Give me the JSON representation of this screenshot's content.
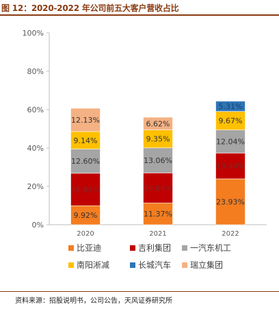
{
  "figure": {
    "title": "图 12：2020-2022 年公司前五大客户营收占比",
    "source": "资料来源：招股说明书，公司公告，天风证券研究所"
  },
  "chart_data": {
    "type": "bar",
    "stacked": true,
    "title": "",
    "xlabel": "",
    "ylabel": "",
    "ylim": [
      0,
      100
    ],
    "yticks": [
      "0%",
      "20%",
      "40%",
      "60%",
      "80%",
      "100%"
    ],
    "categories": [
      "2020",
      "2021",
      "2022"
    ],
    "legend_position": "bottom",
    "grid": false,
    "series": [
      {
        "name": "比亚迪",
        "color": "#F47D20",
        "values": [
          9.92,
          11.37,
          23.93
        ],
        "labels": [
          "9.92%",
          "11.37%",
          "23.93%"
        ],
        "label_color": "#333333"
      },
      {
        "name": "吉利集团",
        "color": "#C00000",
        "values": [
          16.92,
          15.64,
          13.44
        ],
        "labels": [
          "16.92%",
          "15.64%",
          "13.44%"
        ],
        "label_color": "#7a2a2a"
      },
      {
        "name": "一汽东机工",
        "color": "#A5A5A5",
        "values": [
          12.6,
          13.06,
          12.04
        ],
        "labels": [
          "12.60%",
          "13.06%",
          "12.04%"
        ],
        "label_color": "#333333"
      },
      {
        "name": "南阳淅减",
        "color": "#FFC000",
        "values": [
          9.14,
          9.35,
          9.67
        ],
        "labels": [
          "9.14%",
          "9.35%",
          "9.67%"
        ],
        "label_color": "#333333"
      },
      {
        "name": "长城汽车",
        "color": "#2E75B6",
        "values": [
          0,
          0,
          5.31
        ],
        "labels": [
          "",
          "",
          "5.31%"
        ],
        "label_color": "#1f3f66"
      },
      {
        "name": "瑞立集团",
        "color": "#F4B183",
        "values": [
          12.13,
          6.62,
          0
        ],
        "labels": [
          "12.13%",
          "6.62%",
          ""
        ],
        "label_color": "#333333"
      }
    ]
  }
}
